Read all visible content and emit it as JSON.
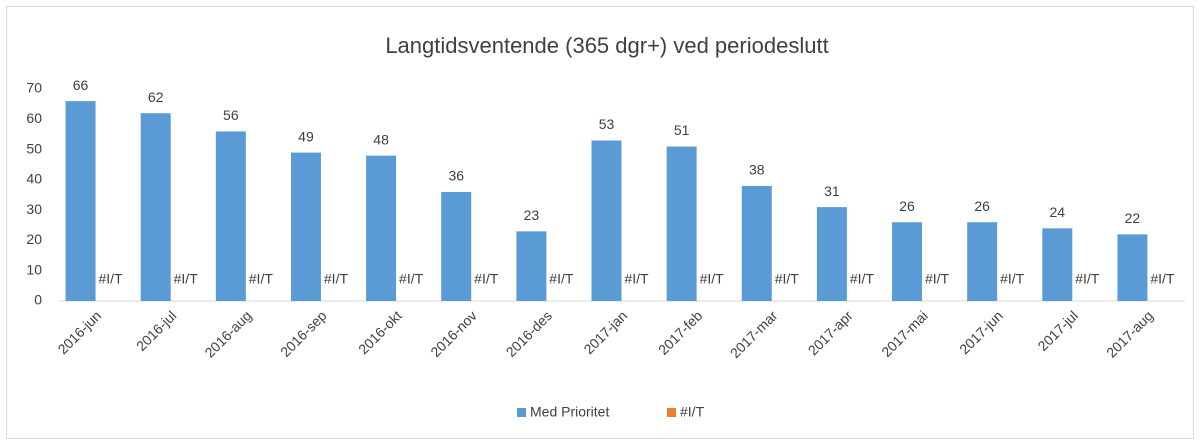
{
  "chart_data": {
    "type": "bar",
    "title": "Langtidsventende (365 dgr+) ved periodeslutt",
    "categories": [
      "2016-jun",
      "2016-jul",
      "2016-aug",
      "2016-sep",
      "2016-okt",
      "2016-nov",
      "2016-des",
      "2017-jan",
      "2017-feb",
      "2017-mar",
      "2017-apr",
      "2017-mai",
      "2017-jun",
      "2017-jul",
      "2017-aug"
    ],
    "series": [
      {
        "name": "Med Prioritet",
        "color": "#5b9bd5",
        "values": [
          66,
          62,
          56,
          49,
          48,
          36,
          23,
          53,
          51,
          38,
          31,
          26,
          26,
          24,
          22
        ]
      },
      {
        "name": "#I/T",
        "color": "#ed7d31",
        "values": [
          null,
          null,
          null,
          null,
          null,
          null,
          null,
          null,
          null,
          null,
          null,
          null,
          null,
          null,
          null
        ],
        "value_labels": [
          "#I/T",
          "#I/T",
          "#I/T",
          "#I/T",
          "#I/T",
          "#I/T",
          "#I/T",
          "#I/T",
          "#I/T",
          "#I/T",
          "#I/T",
          "#I/T",
          "#I/T",
          "#I/T",
          "#I/T"
        ]
      }
    ],
    "ylim": [
      0,
      70
    ],
    "yticks": [
      0,
      10,
      20,
      30,
      40,
      50,
      60,
      70
    ],
    "grid": false,
    "legend": "bottom"
  }
}
